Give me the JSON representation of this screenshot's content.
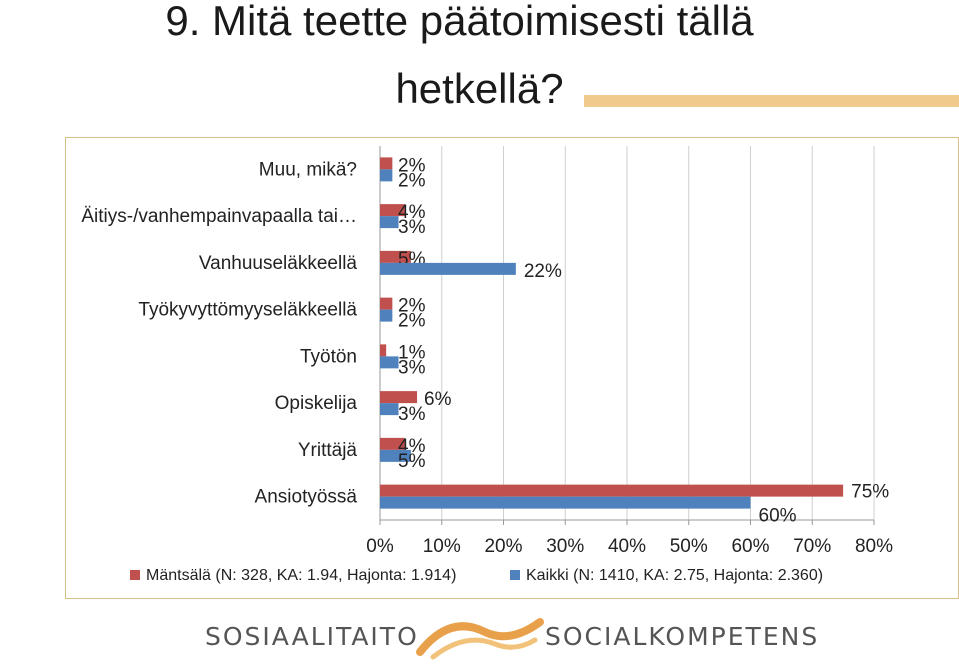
{
  "title_line1": "9. Mitä teette päätoimisesti tällä",
  "title_line2": "hetkellä?",
  "logo_left": "SOSIAALITAITO",
  "logo_right": "SOCIALKOMPETENS",
  "chart_data": {
    "type": "bar",
    "orientation": "horizontal",
    "categories": [
      "Muu, mikä?",
      "Äitiys-/vanhempainvapaalla tai…",
      "Vanhuuseläkkeellä",
      "Työkyvyttömyyseläkkeellä",
      "Työtön",
      "Opiskelija",
      "Yrittäjä",
      "Ansiotyössä"
    ],
    "series": [
      {
        "name": "Mäntsälä (N: 328, KA: 1.94, Hajonta: 1.914)",
        "color": "#c0504d",
        "values": [
          2,
          4,
          5,
          2,
          1,
          6,
          4,
          75
        ]
      },
      {
        "name": "Kaikki (N: 1410, KA: 2.75, Hajonta: 2.360)",
        "color": "#4f81bd",
        "values": [
          2,
          3,
          22,
          2,
          3,
          3,
          5,
          60
        ]
      }
    ],
    "data_labels": [
      [
        "2%",
        "4%",
        "5%",
        "2%",
        "1%",
        "6%",
        "4%",
        "75%"
      ],
      [
        "2%",
        "3%",
        "22%",
        "2%",
        "3%",
        "3%",
        "5%",
        "60%"
      ]
    ],
    "xlim": [
      0,
      80
    ],
    "x_ticks": [
      "0%",
      "10%",
      "20%",
      "30%",
      "40%",
      "50%",
      "60%",
      "70%",
      "80%"
    ],
    "grid": true,
    "legend_position": "bottom"
  }
}
